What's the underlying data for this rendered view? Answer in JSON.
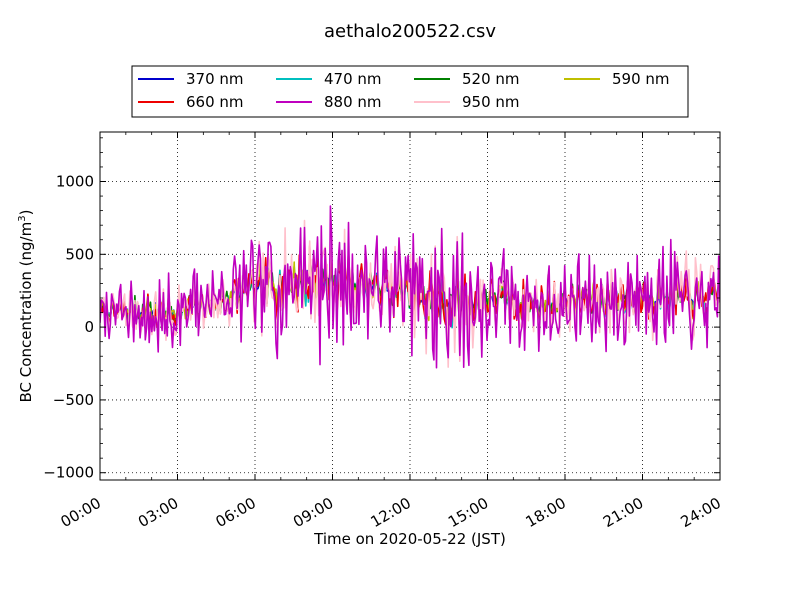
{
  "chart_data": {
    "type": "line",
    "title": "aethalo200522.csv",
    "xlabel": "Time on 2020-05-22 (JST)",
    "ylabel": "BC Concentration (ng/m",
    "ylabel_sup": "3",
    "ylabel_end": ")",
    "xlim": [
      0,
      24
    ],
    "ylim": [
      -1050,
      1340
    ],
    "x_ticks": [
      {
        "value": 0,
        "label": "00:00"
      },
      {
        "value": 3,
        "label": "03:00"
      },
      {
        "value": 6,
        "label": "06:00"
      },
      {
        "value": 9,
        "label": "09:00"
      },
      {
        "value": 12,
        "label": "12:00"
      },
      {
        "value": 15,
        "label": "15:00"
      },
      {
        "value": 18,
        "label": "18:00"
      },
      {
        "value": 21,
        "label": "21:00"
      },
      {
        "value": 24,
        "label": "24:00"
      }
    ],
    "y_ticks": [
      {
        "value": -1000,
        "label": "−1000"
      },
      {
        "value": -500,
        "label": "−500"
      },
      {
        "value": 0,
        "label": "0"
      },
      {
        "value": 500,
        "label": "500"
      },
      {
        "value": 1000,
        "label": "1000"
      }
    ],
    "grid": true,
    "legend_position": "top-center",
    "legend_columns": 4,
    "series": [
      {
        "name": "370 nm",
        "color": "#0000cc",
        "seed": 11,
        "amp": 0.35
      },
      {
        "name": "470 nm",
        "color": "#00bfbf",
        "seed": 23,
        "amp": 0.4
      },
      {
        "name": "520 nm",
        "color": "#008000",
        "seed": 37,
        "amp": 0.45
      },
      {
        "name": "590 nm",
        "color": "#bfbf00",
        "seed": 41,
        "amp": 0.5
      },
      {
        "name": "660 nm",
        "color": "#ee0000",
        "seed": 53,
        "amp": 0.6
      },
      {
        "name": "880 nm",
        "color": "#bf00bf",
        "seed": 67,
        "amp": 1.25
      },
      {
        "name": "950 nm",
        "color": "#ffc0cb",
        "seed": 79,
        "amp": 0.95
      }
    ],
    "envelope": {
      "x": [
        0,
        1,
        2,
        3,
        4,
        5,
        6,
        7,
        8,
        9,
        10,
        11,
        12,
        13,
        14,
        15,
        16,
        17,
        18,
        19,
        20,
        21,
        22,
        23,
        24
      ],
      "baseline": [
        120,
        110,
        100,
        110,
        150,
        200,
        260,
        300,
        320,
        320,
        300,
        270,
        230,
        150,
        160,
        200,
        180,
        150,
        170,
        190,
        210,
        220,
        210,
        200,
        210
      ],
      "spread": [
        120,
        180,
        260,
        220,
        200,
        240,
        300,
        360,
        420,
        380,
        300,
        280,
        320,
        560,
        420,
        260,
        260,
        220,
        260,
        280,
        300,
        300,
        300,
        280,
        260
      ]
    }
  }
}
